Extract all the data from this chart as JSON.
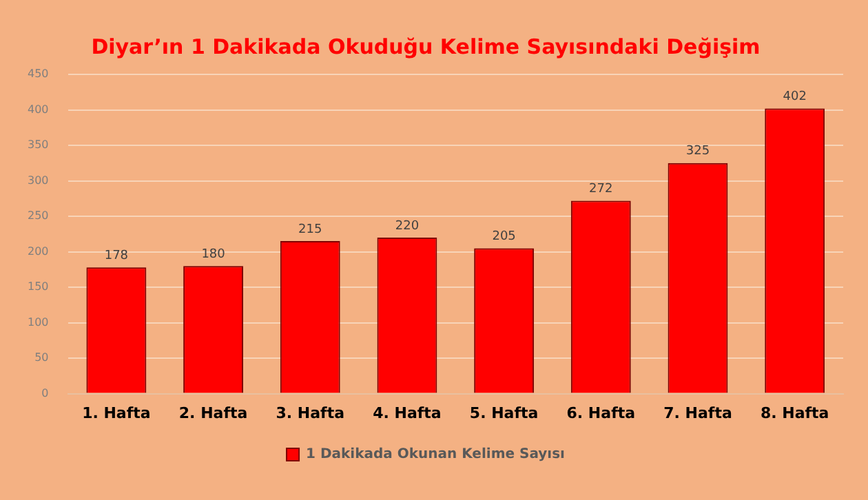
{
  "chart_data": {
    "type": "bar",
    "title": "Diyar’ın 1 Dakikada Okuduğu Kelime Sayısındaki Değişim",
    "categories": [
      "1. Hafta",
      "2. Hafta",
      "3. Hafta",
      "4. Hafta",
      "5. Hafta",
      "6. Hafta",
      "7. Hafta",
      "8. Hafta"
    ],
    "series": [
      {
        "name": "1 Dakikada Okunan Kelime Sayısı",
        "color": "#ff0000",
        "values": [
          178,
          180,
          215,
          220,
          205,
          272,
          325,
          402
        ]
      }
    ],
    "ylim": [
      0,
      450
    ],
    "yticks": [
      0,
      50,
      100,
      150,
      200,
      250,
      300,
      350,
      400,
      450
    ],
    "grid": "y",
    "legend": "bottom",
    "data_labels": true
  }
}
